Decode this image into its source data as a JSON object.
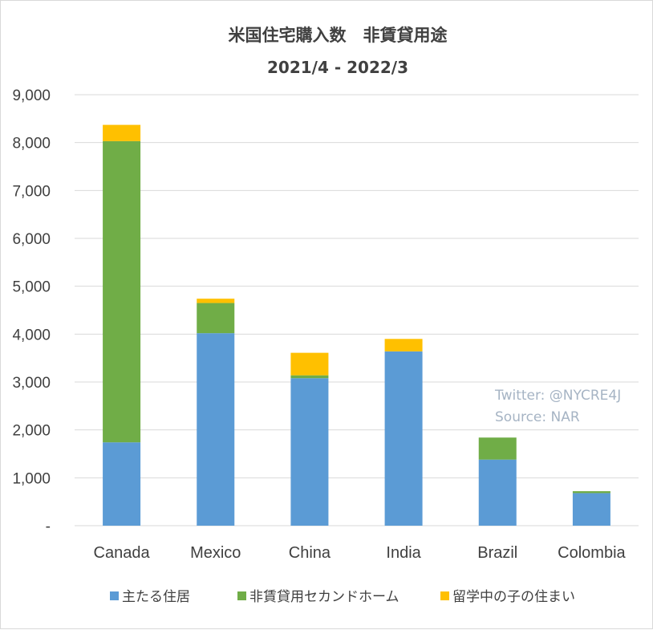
{
  "chart_data": {
    "type": "bar",
    "stacked": true,
    "title": "米国住宅購入数　非賃貸用途",
    "subtitle": "2021/4 - 2022/3",
    "categories": [
      "Canada",
      "Mexico",
      "China",
      "India",
      "Brazil",
      "Colombia"
    ],
    "series": [
      {
        "name": "主たる住居",
        "values": [
          1740,
          4020,
          3080,
          3640,
          1380,
          680
        ],
        "color": "#5b9bd5"
      },
      {
        "name": "非賃貸用セカンドホーム",
        "values": [
          6290,
          630,
          60,
          0,
          460,
          40
        ],
        "color": "#70ad47"
      },
      {
        "name": "留学中の子の住まい",
        "values": [
          340,
          90,
          470,
          260,
          0,
          0
        ],
        "color": "#ffc000"
      }
    ],
    "ylim": [
      0,
      9000
    ],
    "yticks": [
      0,
      1000,
      2000,
      3000,
      4000,
      5000,
      6000,
      7000,
      8000,
      9000
    ],
    "ytick_labels": [
      "-",
      "1,000",
      "2,000",
      "3,000",
      "4,000",
      "5,000",
      "6,000",
      "7,000",
      "8,000",
      "9,000"
    ],
    "grid": true,
    "legend_position": "bottom",
    "annotations": [
      "Twitter: @NYCRE4J",
      "Source: NAR"
    ]
  }
}
